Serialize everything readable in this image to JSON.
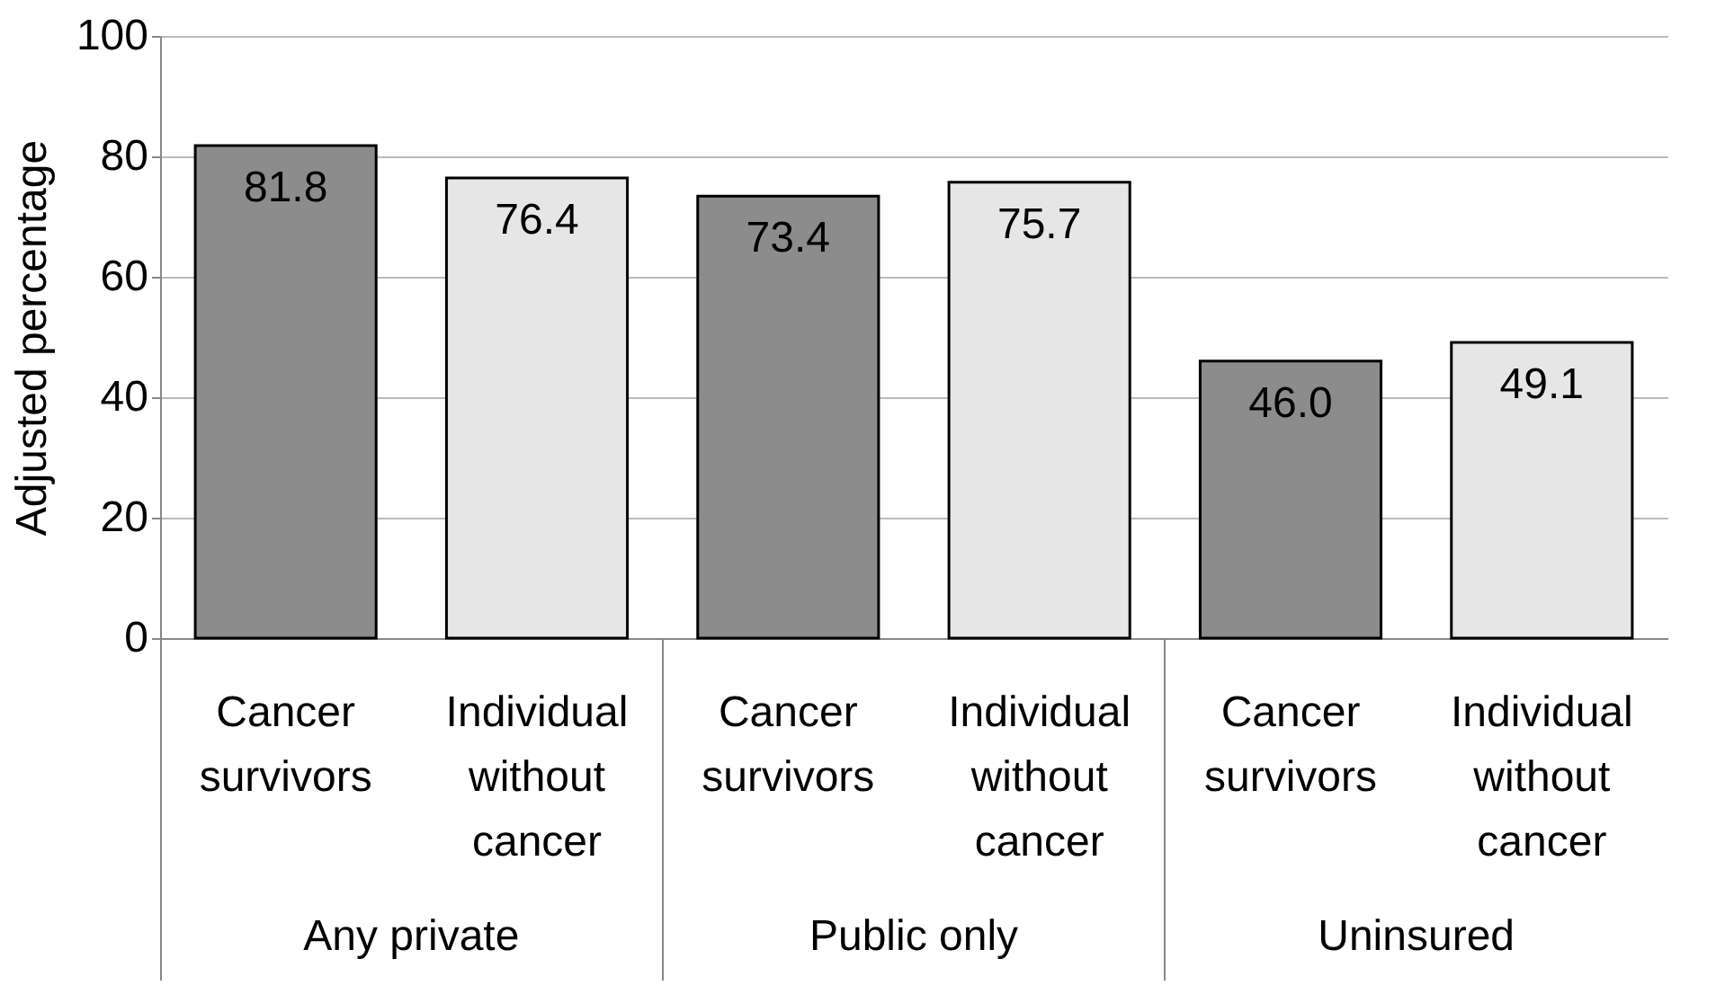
{
  "chart_data": {
    "type": "bar",
    "ylabel": "Adjusted percentage",
    "categories": [
      "Any private",
      "Public only",
      "Uninsured"
    ],
    "series": [
      {
        "name": "Cancer survivors",
        "color": "#8c8c8c",
        "values": [
          81.8,
          73.4,
          46.0
        ],
        "value_labels": [
          "81.8",
          "73.4",
          "46.0"
        ]
      },
      {
        "name": "Individual without cancer",
        "color": "#e6e6e6",
        "values": [
          76.4,
          75.7,
          49.1
        ],
        "value_labels": [
          "76.4",
          "75.7",
          "49.1"
        ]
      }
    ],
    "ylim": [
      0,
      100
    ],
    "yticks": [
      0,
      20,
      40,
      60,
      80,
      100
    ],
    "grid": "y",
    "legend": false
  }
}
